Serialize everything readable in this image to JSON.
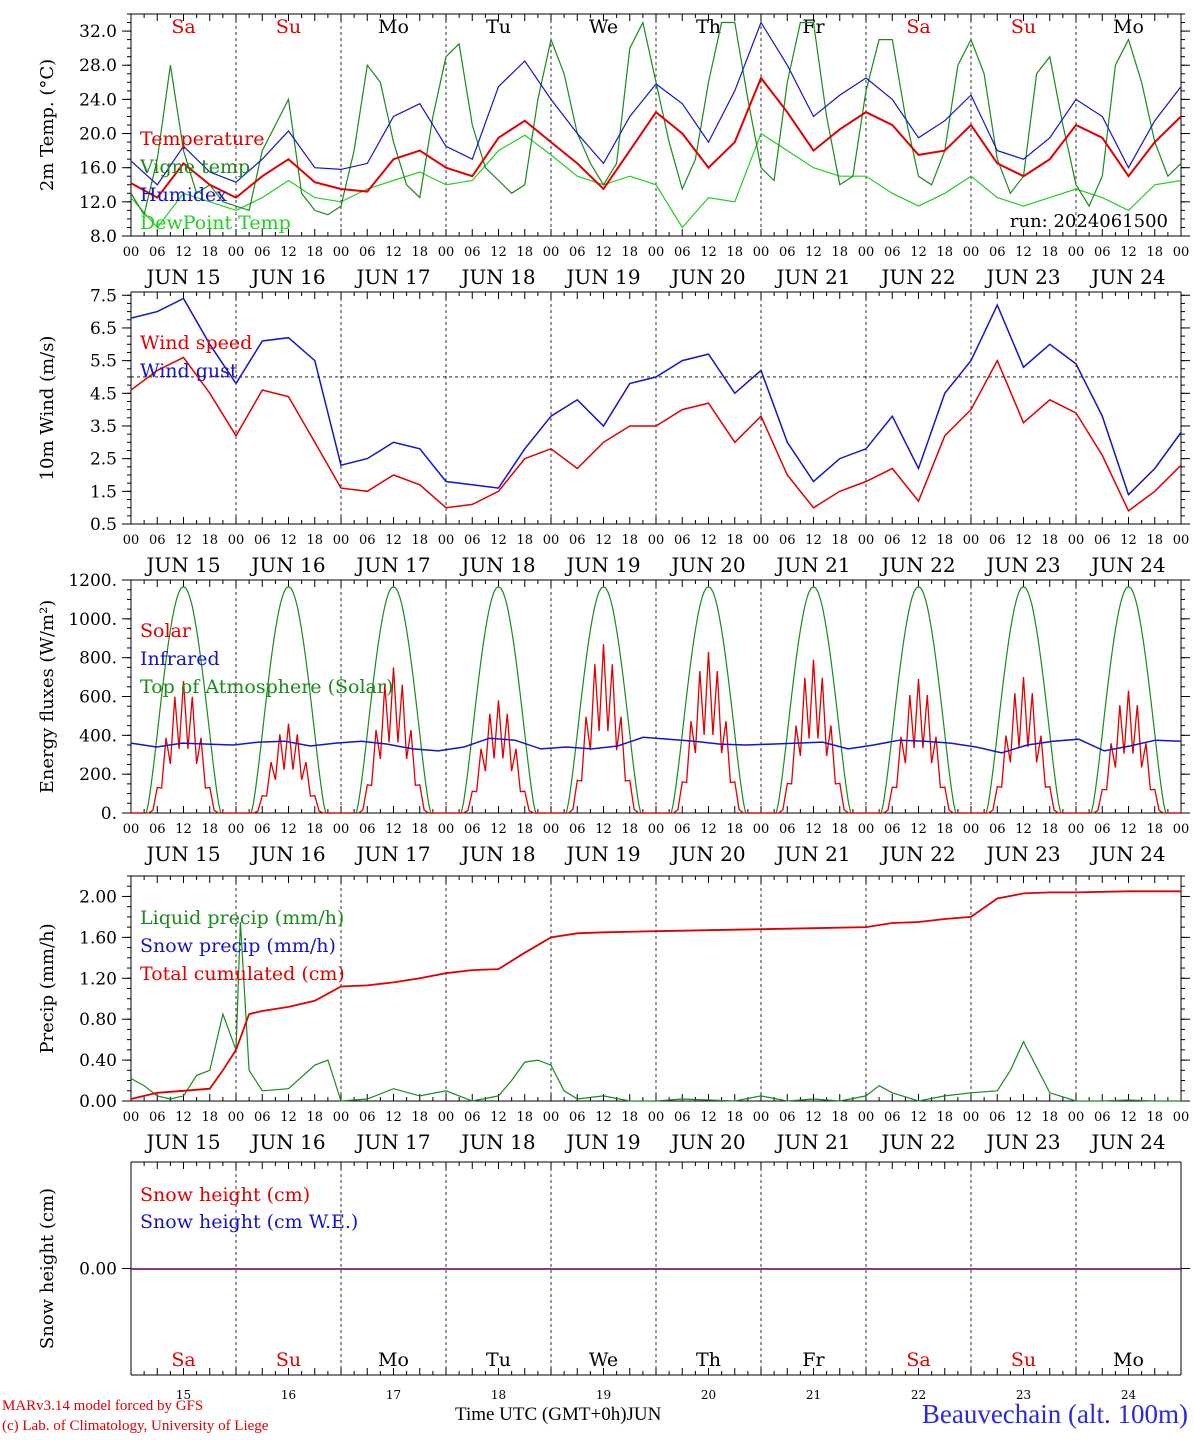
{
  "chart_data": [
    {
      "type": "line",
      "ylabel": "2m Temp. (°C)",
      "yticks": [
        "8.0",
        "12.0",
        "16.0",
        "20.0",
        "24.0",
        "28.0",
        "32.0"
      ],
      "ylim": [
        8,
        34
      ],
      "xlim_hours": [
        0,
        240
      ],
      "annotation": "run: 2024061500",
      "legend": "top-left",
      "series": [
        {
          "name": "Temperature",
          "color": "#e00000",
          "x": [
            0,
            6,
            12,
            18,
            24,
            30,
            36,
            42,
            48,
            54,
            60,
            66,
            72,
            78,
            84,
            90,
            96,
            102,
            108,
            114,
            120,
            126,
            132,
            138,
            144,
            150,
            156,
            162,
            168,
            174,
            180,
            186,
            192,
            198,
            204,
            210,
            216,
            222,
            228,
            234,
            240
          ],
          "values": [
            14.2,
            12.5,
            16.5,
            14.0,
            12.5,
            15.0,
            17.0,
            14.3,
            13.5,
            13.2,
            17.0,
            18.0,
            16.0,
            15.0,
            19.5,
            21.5,
            19.0,
            16.5,
            13.5,
            18.0,
            22.5,
            20.0,
            16.0,
            19.0,
            26.5,
            22.5,
            18.0,
            20.5,
            22.5,
            21.0,
            17.5,
            18.0,
            21.0,
            16.5,
            15.0,
            17.0,
            21.0,
            19.5,
            15.0,
            19.0,
            22.0
          ]
        },
        {
          "name": "Vigne temp",
          "color": "#1a8a1a",
          "x": [
            0,
            3,
            6,
            9,
            12,
            15,
            18,
            21,
            24,
            27,
            30,
            33,
            36,
            39,
            42,
            45,
            48,
            51,
            54,
            57,
            60,
            63,
            66,
            69,
            72,
            75,
            78,
            81,
            84,
            87,
            90,
            93,
            96,
            99,
            102,
            105,
            108,
            111,
            114,
            117,
            120,
            123,
            126,
            129,
            132,
            135,
            138,
            141,
            144,
            147,
            150,
            153,
            156,
            159,
            162,
            165,
            168,
            171,
            174,
            177,
            180,
            183,
            186,
            189,
            192,
            195,
            198,
            201,
            204,
            207,
            210,
            213,
            216,
            219,
            222,
            225,
            228,
            231,
            234,
            237,
            240
          ],
          "values": [
            13.0,
            10.5,
            17.0,
            28.0,
            18.0,
            13.0,
            14.0,
            12.0,
            11.5,
            11.0,
            18.0,
            21.0,
            24.0,
            13.0,
            11.0,
            10.5,
            11.5,
            18.0,
            28.0,
            26.0,
            19.0,
            14.0,
            12.5,
            22.0,
            29.0,
            30.5,
            21.0,
            16.0,
            14.5,
            13.0,
            14.0,
            24.0,
            31.0,
            27.0,
            20.0,
            16.5,
            14.0,
            16.5,
            30.0,
            33.0,
            26.0,
            19.0,
            13.5,
            17.0,
            26.0,
            33.0,
            33.0,
            24.0,
            16.0,
            14.5,
            26.0,
            33.0,
            33.0,
            22.0,
            14.0,
            15.0,
            25.0,
            31.0,
            31.0,
            22.0,
            15.0,
            14.0,
            18.0,
            28.0,
            31.0,
            27.0,
            17.0,
            13.0,
            15.0,
            27.0,
            29.0,
            21.0,
            14.0,
            11.5,
            15.0,
            28.0,
            31.0,
            26.0,
            19.0,
            15.0,
            16.5
          ]
        },
        {
          "name": "Humidex",
          "color": "#1515c8",
          "x": [
            0,
            6,
            12,
            18,
            24,
            30,
            36,
            42,
            48,
            54,
            60,
            66,
            72,
            78,
            84,
            90,
            96,
            102,
            108,
            114,
            120,
            126,
            132,
            138,
            144,
            150,
            156,
            162,
            168,
            174,
            180,
            186,
            192,
            198,
            204,
            210,
            216,
            222,
            228,
            234,
            240
          ],
          "values": [
            16.8,
            14.0,
            18.5,
            15.5,
            14.3,
            17.0,
            20.3,
            16.0,
            15.8,
            16.5,
            22.0,
            23.5,
            18.5,
            17.0,
            25.5,
            28.5,
            24.0,
            20.0,
            16.5,
            22.0,
            25.8,
            23.5,
            19.0,
            25.0,
            33.0,
            28.0,
            22.0,
            24.5,
            26.5,
            24.0,
            19.5,
            21.5,
            24.5,
            18.0,
            17.0,
            19.5,
            24.0,
            22.0,
            16.0,
            21.5,
            25.5
          ]
        },
        {
          "name": "DewPoint Temp",
          "color": "#20d020",
          "x": [
            0,
            6,
            12,
            18,
            24,
            30,
            36,
            42,
            48,
            54,
            60,
            66,
            72,
            78,
            84,
            90,
            96,
            102,
            108,
            114,
            120,
            126,
            132,
            138,
            144,
            150,
            156,
            162,
            168,
            174,
            180,
            186,
            192,
            198,
            204,
            210,
            216,
            222,
            228,
            234,
            240
          ],
          "values": [
            12.5,
            9.0,
            13.0,
            12.0,
            11.0,
            12.5,
            14.5,
            12.5,
            12.0,
            13.5,
            14.5,
            15.5,
            14.0,
            14.5,
            18.0,
            19.8,
            17.5,
            15.0,
            14.0,
            15.0,
            14.0,
            9.0,
            12.5,
            12.0,
            20.0,
            18.0,
            16.0,
            15.0,
            15.0,
            13.0,
            11.5,
            13.0,
            15.0,
            12.5,
            11.5,
            12.5,
            13.5,
            12.5,
            11.0,
            14.0,
            14.5
          ]
        }
      ]
    },
    {
      "type": "line",
      "ylabel": "10m Wind (m/s)",
      "yticks": [
        "0.5",
        "1.5",
        "2.5",
        "3.5",
        "4.5",
        "5.5",
        "6.5",
        "7.5"
      ],
      "ylim": [
        0.5,
        7.6
      ],
      "xlim_hours": [
        0,
        240
      ],
      "reference_line": 5.0,
      "legend": "top-left",
      "series": [
        {
          "name": "Wind speed",
          "color": "#e00000",
          "x": [
            0,
            6,
            12,
            18,
            24,
            30,
            36,
            42,
            48,
            54,
            60,
            66,
            72,
            78,
            84,
            90,
            96,
            102,
            108,
            114,
            120,
            126,
            132,
            138,
            144,
            150,
            156,
            162,
            168,
            174,
            180,
            186,
            192,
            198,
            204,
            210,
            216,
            222,
            228,
            234,
            240
          ],
          "values": [
            4.6,
            5.2,
            5.6,
            4.5,
            3.2,
            4.6,
            4.4,
            3.0,
            1.6,
            1.5,
            2.0,
            1.7,
            1.0,
            1.1,
            1.5,
            2.5,
            2.8,
            2.2,
            3.0,
            3.5,
            3.5,
            4.0,
            4.2,
            3.0,
            3.8,
            2.0,
            1.0,
            1.5,
            1.8,
            2.2,
            1.2,
            3.2,
            4.0,
            5.5,
            3.6,
            4.3,
            3.9,
            2.6,
            0.9,
            1.5,
            2.3
          ]
        },
        {
          "name": "Wind gust",
          "color": "#1515c8",
          "x": [
            0,
            6,
            12,
            18,
            24,
            30,
            36,
            42,
            48,
            54,
            60,
            66,
            72,
            78,
            84,
            90,
            96,
            102,
            108,
            114,
            120,
            126,
            132,
            138,
            144,
            150,
            156,
            162,
            168,
            174,
            180,
            186,
            192,
            198,
            204,
            210,
            216,
            222,
            228,
            234,
            240
          ],
          "values": [
            6.8,
            7.0,
            7.4,
            6.0,
            4.8,
            6.1,
            6.2,
            5.5,
            2.3,
            2.5,
            3.0,
            2.8,
            1.8,
            1.7,
            1.6,
            2.8,
            3.8,
            4.3,
            3.5,
            4.8,
            5.0,
            5.5,
            5.7,
            4.5,
            5.2,
            3.0,
            1.8,
            2.5,
            2.8,
            3.8,
            2.2,
            4.5,
            5.5,
            7.2,
            5.3,
            6.0,
            5.4,
            3.8,
            1.4,
            2.2,
            3.3
          ]
        }
      ]
    },
    {
      "type": "line",
      "ylabel": "Energy fluxes (W/m²)",
      "yticks": [
        "0.",
        "200.",
        "400.",
        "600.",
        "800.",
        "1000.",
        "1200."
      ],
      "ylim": [
        0,
        1200
      ],
      "xlim_hours": [
        0,
        240
      ],
      "legend": "top-left",
      "daily_peaks_solar": [
        680,
        460,
        750,
        580,
        870,
        830,
        790,
        690,
        700,
        630
      ],
      "series": [
        {
          "name": "Solar",
          "color": "#e00000"
        },
        {
          "name": "Infrared",
          "color": "#1515c8",
          "values": [
            360,
            340,
            360,
            355,
            350,
            365,
            370,
            345,
            360,
            370,
            355,
            330,
            320,
            340,
            385,
            375,
            330,
            340,
            330,
            345,
            390,
            380,
            370,
            355,
            350,
            355,
            360,
            365,
            330,
            350,
            375,
            370,
            360,
            340,
            310,
            350,
            370,
            380,
            320,
            345,
            375,
            370
          ]
        },
        {
          "name": "Top of Atmosphere (Solar)",
          "color": "#1a8a1a",
          "peak": 1165
        }
      ]
    },
    {
      "type": "line",
      "ylabel": "Precip (mm/h)",
      "yticks": [
        "0.00",
        "0.40",
        "0.80",
        "1.20",
        "1.60",
        "2.00"
      ],
      "ylim": [
        0,
        2.2
      ],
      "xlim_hours": [
        0,
        240
      ],
      "legend": "top-left",
      "series": [
        {
          "name": "Liquid precip (mm/h)",
          "color": "#1a8a1a",
          "x": [
            0,
            3,
            6,
            9,
            12,
            15,
            18,
            21,
            24,
            25,
            27,
            30,
            36,
            42,
            45,
            48,
            54,
            60,
            66,
            72,
            78,
            84,
            87,
            90,
            93,
            96,
            99,
            102,
            108,
            114,
            120,
            126,
            132,
            138,
            144,
            150,
            156,
            162,
            168,
            171,
            174,
            180,
            186,
            192,
            198,
            201,
            204,
            210,
            216,
            222,
            228,
            234,
            240
          ],
          "values": [
            0.22,
            0.15,
            0.05,
            0.02,
            0.05,
            0.25,
            0.3,
            0.85,
            0.5,
            1.75,
            0.3,
            0.1,
            0.12,
            0.35,
            0.4,
            0.0,
            0.02,
            0.12,
            0.05,
            0.1,
            0.0,
            0.05,
            0.2,
            0.38,
            0.4,
            0.35,
            0.1,
            0.02,
            0.05,
            0.0,
            0.0,
            0.02,
            0.01,
            0.0,
            0.05,
            0.0,
            0.02,
            0.0,
            0.05,
            0.15,
            0.08,
            0.0,
            0.05,
            0.08,
            0.1,
            0.3,
            0.58,
            0.08,
            0.0,
            0.0,
            0.01,
            0.0,
            0.0
          ]
        },
        {
          "name": "Snow precip (mm/h)",
          "color": "#1515c8",
          "values": []
        },
        {
          "name": "Total cumulated (cm)",
          "color": "#e00000",
          "x": [
            0,
            6,
            12,
            18,
            21,
            24,
            27,
            30,
            36,
            42,
            48,
            54,
            60,
            66,
            72,
            78,
            84,
            90,
            96,
            102,
            108,
            120,
            132,
            144,
            156,
            168,
            174,
            180,
            186,
            192,
            198,
            204,
            210,
            216,
            228,
            240
          ],
          "values": [
            0.02,
            0.08,
            0.1,
            0.12,
            0.3,
            0.5,
            0.85,
            0.88,
            0.92,
            0.98,
            1.12,
            1.13,
            1.16,
            1.2,
            1.25,
            1.28,
            1.29,
            1.45,
            1.6,
            1.64,
            1.65,
            1.66,
            1.67,
            1.68,
            1.69,
            1.7,
            1.74,
            1.75,
            1.78,
            1.8,
            1.98,
            2.03,
            2.04,
            2.04,
            2.05,
            2.05
          ]
        }
      ]
    },
    {
      "type": "line",
      "ylabel": "Snow height (cm)",
      "yticks": [
        "0.00"
      ],
      "xlim_hours": [
        0,
        240
      ],
      "legend": "top-left",
      "series": [
        {
          "name": "Snow height (cm)",
          "color": "#e00000",
          "values": [
            0,
            0
          ]
        },
        {
          "name": "Snow height (cm W.E.)",
          "color": "#1515c8",
          "values": [
            0,
            0
          ]
        }
      ]
    }
  ],
  "days": [
    "Sa",
    "Su",
    "Mo",
    "Tu",
    "We",
    "Th",
    "Fr",
    "Sa",
    "Su",
    "Mo"
  ],
  "weekend_days": [
    0,
    1,
    7,
    8
  ],
  "date_labels": [
    "JUN 15",
    "JUN 16",
    "JUN 17",
    "JUN 18",
    "JUN 19",
    "JUN 20",
    "JUN 21",
    "JUN 22",
    "JUN 23",
    "JUN 24"
  ],
  "day_numbers": [
    "15",
    "16",
    "17",
    "18",
    "19",
    "20",
    "21",
    "22",
    "23",
    "24"
  ],
  "hour_ticks": [
    "00",
    "06",
    "12",
    "18"
  ],
  "hour_end": "00",
  "colors": {
    "weekend": "#e00000",
    "weekday": "#000000",
    "station": "#2a2ae0"
  },
  "footer": {
    "credit1": "MARv3.14 model forced by GFS",
    "credit2": "(c) Lab. of Climatology, University of Liege",
    "xaxis_title": "Time UTC (GMT+0h)JUN",
    "station": "Beauvechain (alt. 100m)"
  }
}
